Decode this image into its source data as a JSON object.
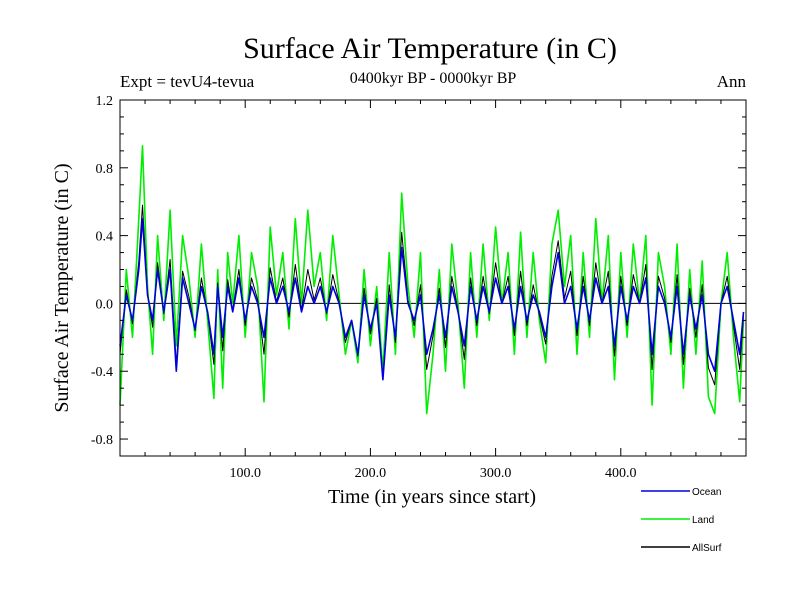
{
  "chart_data": {
    "type": "line",
    "title": "Surface Air Temperature (in C)",
    "subtitle": "0400kyr BP - 0000kyr BP",
    "expt_label": "Expt = tevU4-tevua",
    "season_label": "Ann",
    "xlabel": "Time (in years since start)",
    "ylabel": "Surface Air Temperature (in C)",
    "xlim": [
      0,
      500
    ],
    "ylim": [
      -0.9,
      1.2
    ],
    "x_ticks": [
      100,
      200,
      300,
      400
    ],
    "x_tick_labels": [
      "100.0",
      "200.0",
      "300.0",
      "400.0"
    ],
    "y_ticks": [
      -0.8,
      -0.4,
      0.0,
      0.4,
      0.8,
      1.2
    ],
    "y_tick_labels": [
      "-0.8",
      "-0.4",
      "0.0",
      "0.4",
      "0.8",
      "1.2"
    ],
    "zero_line": true,
    "legend_position": "bottom-right",
    "series": [
      {
        "name": "Land",
        "color": "#00ee00",
        "x": [
          0,
          5,
          10,
          15,
          18,
          22,
          26,
          30,
          35,
          40,
          45,
          50,
          55,
          60,
          65,
          70,
          75,
          78,
          82,
          86,
          90,
          95,
          100,
          105,
          110,
          115,
          120,
          125,
          130,
          135,
          140,
          145,
          150,
          155,
          160,
          165,
          170,
          175,
          180,
          185,
          190,
          195,
          200,
          205,
          210,
          215,
          220,
          225,
          230,
          235,
          240,
          245,
          250,
          255,
          260,
          265,
          270,
          275,
          280,
          285,
          290,
          295,
          300,
          305,
          310,
          315,
          320,
          325,
          330,
          335,
          340,
          345,
          350,
          355,
          360,
          365,
          370,
          375,
          380,
          385,
          390,
          395,
          400,
          405,
          410,
          415,
          420,
          425,
          430,
          435,
          440,
          445,
          450,
          455,
          460,
          465,
          470,
          475,
          480,
          485,
          490,
          495,
          498
        ],
        "y": [
          -0.6,
          0.2,
          -0.2,
          0.5,
          0.93,
          0.1,
          -0.3,
          0.4,
          -0.1,
          0.55,
          -0.25,
          0.4,
          0.15,
          -0.2,
          0.35,
          -0.1,
          -0.56,
          0.2,
          -0.5,
          0.3,
          0.0,
          0.4,
          -0.2,
          0.3,
          0.1,
          -0.58,
          0.45,
          0.05,
          0.3,
          -0.15,
          0.5,
          0.0,
          0.55,
          0.1,
          0.3,
          -0.1,
          0.4,
          0.05,
          -0.3,
          -0.1,
          -0.35,
          0.2,
          -0.25,
          0.1,
          -0.4,
          0.3,
          -0.3,
          0.65,
          0.1,
          -0.2,
          0.3,
          -0.65,
          -0.3,
          0.2,
          -0.4,
          0.35,
          0.0,
          -0.5,
          0.3,
          -0.2,
          0.35,
          -0.1,
          0.45,
          0.0,
          0.3,
          -0.3,
          0.42,
          -0.2,
          0.3,
          -0.1,
          -0.35,
          0.35,
          0.55,
          0.1,
          0.4,
          -0.3,
          0.3,
          -0.2,
          0.5,
          0.0,
          0.4,
          -0.45,
          0.3,
          -0.2,
          0.35,
          0.0,
          0.4,
          -0.6,
          0.3,
          0.1,
          -0.3,
          0.35,
          -0.5,
          0.2,
          -0.3,
          0.25,
          -0.55,
          -0.65,
          0.0,
          0.3,
          -0.2,
          -0.58,
          -0.1
        ]
      },
      {
        "name": "Ocean",
        "color": "#0000e0",
        "x": [
          0,
          5,
          10,
          15,
          18,
          22,
          26,
          30,
          35,
          40,
          45,
          50,
          55,
          60,
          65,
          70,
          75,
          78,
          82,
          86,
          90,
          95,
          100,
          105,
          110,
          115,
          120,
          125,
          130,
          135,
          140,
          145,
          150,
          155,
          160,
          165,
          170,
          175,
          180,
          185,
          190,
          195,
          200,
          205,
          210,
          215,
          220,
          225,
          230,
          235,
          240,
          245,
          250,
          255,
          260,
          265,
          270,
          275,
          280,
          285,
          290,
          295,
          300,
          305,
          310,
          315,
          320,
          325,
          330,
          335,
          340,
          345,
          350,
          355,
          360,
          365,
          370,
          375,
          380,
          385,
          390,
          395,
          400,
          405,
          410,
          415,
          420,
          425,
          430,
          435,
          440,
          445,
          450,
          455,
          460,
          465,
          470,
          475,
          480,
          485,
          490,
          495,
          498
        ],
        "y": [
          -0.25,
          0.05,
          -0.1,
          0.2,
          0.5,
          0.05,
          -0.1,
          0.2,
          -0.05,
          0.2,
          -0.4,
          0.15,
          0.0,
          -0.15,
          0.1,
          -0.05,
          -0.3,
          0.1,
          -0.2,
          0.1,
          -0.05,
          0.15,
          -0.1,
          0.1,
          0.0,
          -0.2,
          0.15,
          0.0,
          0.1,
          -0.05,
          0.15,
          -0.05,
          0.1,
          0.0,
          0.1,
          -0.05,
          0.1,
          0.0,
          -0.2,
          -0.1,
          -0.3,
          0.05,
          -0.15,
          0.0,
          -0.45,
          0.05,
          -0.2,
          0.33,
          0.0,
          -0.1,
          0.05,
          -0.3,
          -0.15,
          0.05,
          -0.2,
          0.1,
          -0.05,
          -0.25,
          0.1,
          -0.1,
          0.1,
          -0.05,
          0.15,
          0.0,
          0.1,
          -0.15,
          0.1,
          -0.1,
          0.05,
          -0.05,
          -0.2,
          0.1,
          0.3,
          0.0,
          0.1,
          -0.15,
          0.1,
          -0.1,
          0.15,
          0.0,
          0.1,
          -0.25,
          0.1,
          -0.1,
          0.1,
          0.0,
          0.15,
          -0.3,
          0.1,
          0.0,
          -0.2,
          0.1,
          -0.3,
          0.05,
          -0.15,
          0.05,
          -0.3,
          -0.4,
          0.0,
          0.1,
          -0.1,
          -0.3,
          -0.05
        ]
      },
      {
        "name": "AllSurf",
        "color": "#000000",
        "x": [
          0,
          5,
          10,
          15,
          18,
          22,
          26,
          30,
          35,
          40,
          45,
          50,
          55,
          60,
          65,
          70,
          75,
          78,
          82,
          86,
          90,
          95,
          100,
          105,
          110,
          115,
          120,
          125,
          130,
          135,
          140,
          145,
          150,
          155,
          160,
          165,
          170,
          175,
          180,
          185,
          190,
          195,
          200,
          205,
          210,
          215,
          220,
          225,
          230,
          235,
          240,
          245,
          250,
          255,
          260,
          265,
          270,
          275,
          280,
          285,
          290,
          295,
          300,
          305,
          310,
          315,
          320,
          325,
          330,
          335,
          340,
          345,
          350,
          355,
          360,
          365,
          370,
          375,
          380,
          385,
          390,
          395,
          400,
          405,
          410,
          415,
          420,
          425,
          430,
          435,
          440,
          445,
          450,
          455,
          460,
          465,
          470,
          475,
          480,
          485,
          490,
          495,
          498
        ],
        "y": [
          -0.3,
          0.08,
          -0.12,
          0.25,
          0.58,
          0.06,
          -0.14,
          0.24,
          -0.06,
          0.26,
          -0.36,
          0.19,
          0.04,
          -0.16,
          0.15,
          -0.06,
          -0.36,
          0.12,
          -0.28,
          0.14,
          -0.04,
          0.2,
          -0.13,
          0.15,
          0.02,
          -0.3,
          0.21,
          0.01,
          0.15,
          -0.08,
          0.23,
          -0.04,
          0.2,
          0.02,
          0.15,
          -0.06,
          0.17,
          0.01,
          -0.23,
          -0.1,
          -0.31,
          0.09,
          -0.18,
          0.03,
          -0.44,
          0.11,
          -0.23,
          0.42,
          0.02,
          -0.13,
          0.11,
          -0.39,
          -0.19,
          0.09,
          -0.26,
          0.16,
          -0.04,
          -0.33,
          0.15,
          -0.13,
          0.16,
          -0.06,
          0.24,
          0.0,
          0.16,
          -0.19,
          0.19,
          -0.13,
          0.11,
          -0.07,
          -0.24,
          0.16,
          0.37,
          0.03,
          0.19,
          -0.19,
          0.16,
          -0.13,
          0.24,
          0.0,
          0.19,
          -0.31,
          0.16,
          -0.13,
          0.17,
          0.0,
          0.23,
          -0.39,
          0.16,
          0.03,
          -0.23,
          0.17,
          -0.36,
          0.09,
          -0.2,
          0.11,
          -0.38,
          -0.48,
          0.0,
          0.16,
          -0.13,
          -0.39,
          -0.07
        ]
      }
    ]
  }
}
